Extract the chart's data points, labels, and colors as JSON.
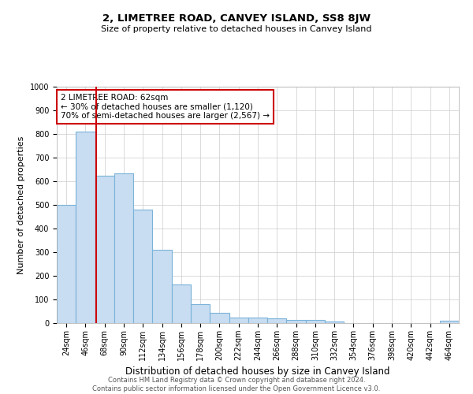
{
  "title": "2, LIMETREE ROAD, CANVEY ISLAND, SS8 8JW",
  "subtitle": "Size of property relative to detached houses in Canvey Island",
  "xlabel": "Distribution of detached houses by size in Canvey Island",
  "ylabel": "Number of detached properties",
  "footer_line1": "Contains HM Land Registry data © Crown copyright and database right 2024.",
  "footer_line2": "Contains public sector information licensed under the Open Government Licence v3.0.",
  "categories": [
    "24sqm",
    "46sqm",
    "68sqm",
    "90sqm",
    "112sqm",
    "134sqm",
    "156sqm",
    "178sqm",
    "200sqm",
    "222sqm",
    "244sqm",
    "266sqm",
    "288sqm",
    "310sqm",
    "332sqm",
    "354sqm",
    "376sqm",
    "398sqm",
    "420sqm",
    "442sqm",
    "464sqm"
  ],
  "values": [
    500,
    810,
    625,
    635,
    480,
    310,
    163,
    80,
    45,
    23,
    22,
    20,
    12,
    12,
    8,
    0,
    0,
    0,
    0,
    0,
    10
  ],
  "bar_color": "#c8ddf2",
  "bar_edge_color": "#7ab3d8",
  "annotation_text": "2 LIMETREE ROAD: 62sqm\n← 30% of detached houses are smaller (1,120)\n70% of semi-detached houses are larger (2,567) →",
  "vline_x_index": 1.55,
  "vline_color": "#cc0000",
  "annotation_box_color": "#ffffff",
  "annotation_box_edge_color": "#cc0000",
  "ylim": [
    0,
    1000
  ],
  "yticks": [
    0,
    100,
    200,
    300,
    400,
    500,
    600,
    700,
    800,
    900,
    1000
  ],
  "background_color": "#ffffff",
  "grid_color": "#cccccc",
  "title_fontsize": 9.5,
  "subtitle_fontsize": 8,
  "ylabel_fontsize": 8,
  "xlabel_fontsize": 8.5,
  "tick_fontsize": 7,
  "annotation_fontsize": 7.5,
  "footer_fontsize": 6
}
